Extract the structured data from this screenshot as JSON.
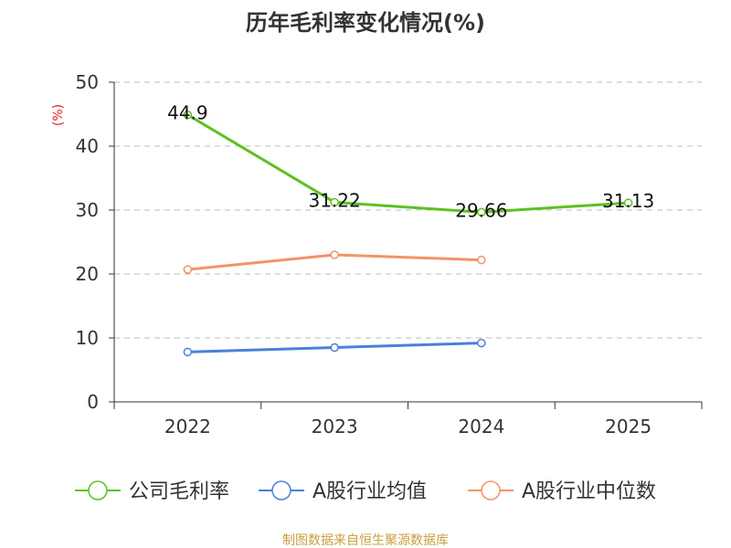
{
  "chart_data": {
    "type": "line",
    "title": "历年毛利率变化情况(%)",
    "ylabel": "(%)",
    "xlabel": "",
    "categories": [
      "2022",
      "2023",
      "2024",
      "2025"
    ],
    "ylim": [
      0,
      50
    ],
    "yticks": [
      0,
      10,
      20,
      30,
      40,
      50
    ],
    "grid": true,
    "legend_position": "bottom",
    "series": [
      {
        "name": "公司毛利率",
        "color": "#5cc122",
        "values": [
          44.9,
          31.22,
          29.66,
          31.13
        ],
        "labels": [
          "44.9",
          "31.22",
          "29.66",
          "31.13"
        ]
      },
      {
        "name": "A股行业均值",
        "color": "#4a7fdc",
        "values": [
          7.8,
          8.5,
          9.2,
          null
        ]
      },
      {
        "name": "A股行业中位数",
        "color": "#f59366",
        "values": [
          20.7,
          23.0,
          22.2,
          null
        ]
      }
    ]
  },
  "source_note": "制图数据来自恒生聚源数据库"
}
